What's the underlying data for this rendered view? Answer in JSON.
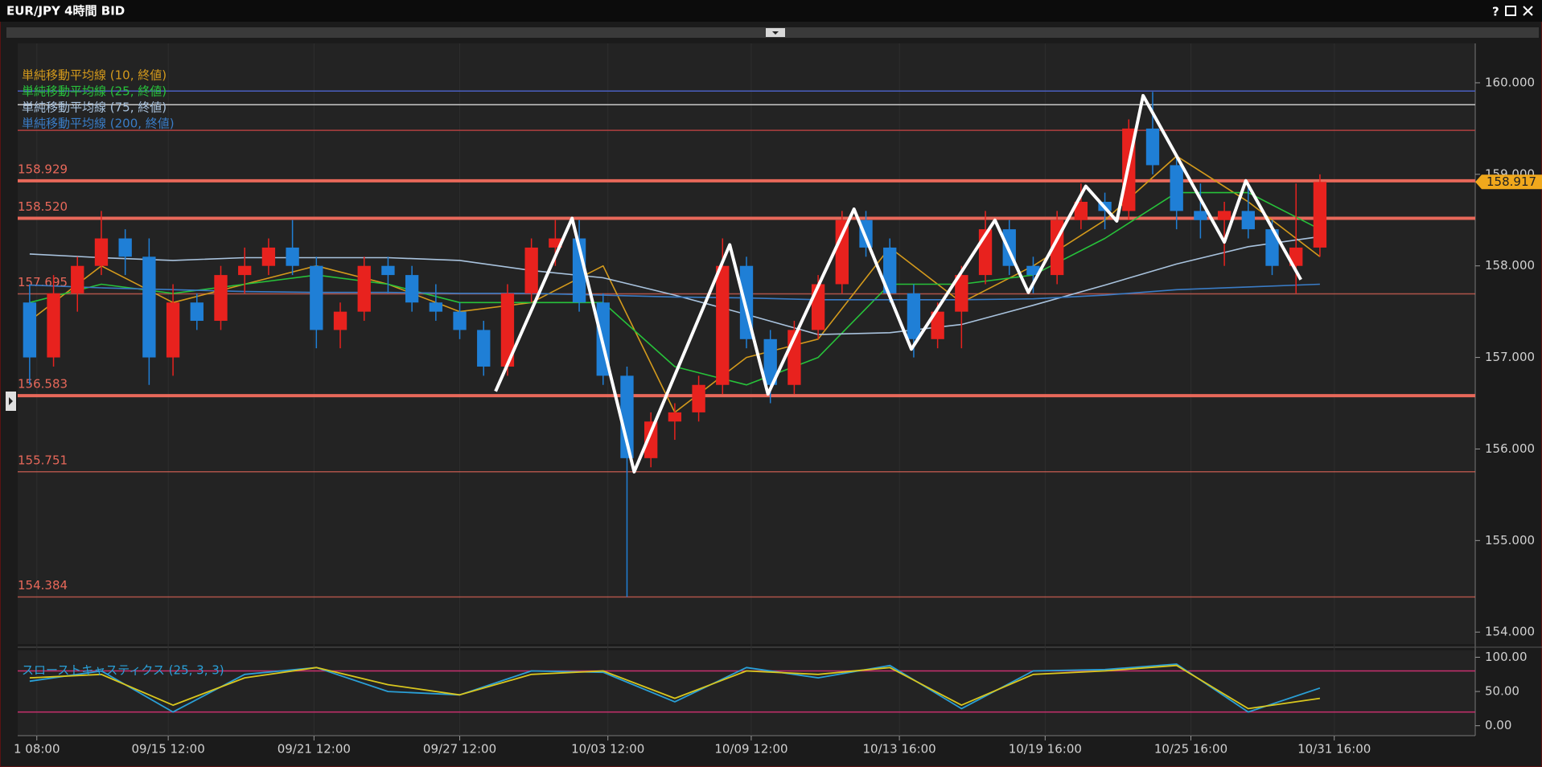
{
  "chart_data": [
    {
      "type": "candlestick",
      "title": "EUR/JPY 4時間 BID",
      "up_color": "#e8221e",
      "down_color": "#1f7fd6",
      "x": [
        0,
        1,
        2,
        3,
        4,
        5,
        6,
        7,
        8,
        9,
        10,
        11,
        12,
        13,
        14,
        15,
        16,
        17,
        18,
        19,
        20,
        21,
        22,
        23,
        24,
        25,
        26,
        27,
        28,
        29,
        30,
        31,
        32,
        33,
        34,
        35,
        36,
        37,
        38,
        39,
        40,
        41,
        42,
        43,
        44,
        45,
        46,
        47,
        48,
        49,
        50,
        51,
        52,
        53,
        54
      ],
      "open": [
        157.6,
        157.0,
        157.7,
        158.0,
        158.3,
        158.1,
        157.0,
        157.6,
        157.4,
        157.9,
        158.0,
        158.2,
        158.0,
        157.3,
        157.5,
        158.0,
        157.9,
        157.6,
        157.5,
        157.3,
        156.9,
        157.7,
        158.2,
        158.3,
        157.6,
        156.8,
        155.9,
        156.3,
        156.4,
        156.7,
        158.0,
        157.2,
        156.7,
        157.3,
        157.8,
        158.5,
        158.2,
        157.7,
        157.2,
        157.5,
        157.9,
        158.4,
        158.0,
        157.9,
        158.5,
        158.7,
        158.6,
        159.5,
        159.1,
        158.6,
        158.5,
        158.6,
        158.4,
        158.0,
        158.2
      ],
      "high": [
        157.8,
        157.9,
        158.1,
        158.6,
        158.4,
        158.3,
        157.8,
        157.7,
        158.0,
        158.2,
        158.3,
        158.5,
        158.1,
        157.6,
        158.1,
        158.1,
        158.0,
        157.8,
        157.6,
        157.4,
        157.8,
        158.3,
        158.5,
        158.5,
        157.7,
        156.9,
        156.4,
        156.5,
        156.8,
        158.3,
        158.1,
        157.3,
        157.4,
        157.9,
        158.6,
        158.6,
        158.3,
        157.8,
        157.6,
        158.0,
        158.6,
        158.5,
        158.1,
        158.6,
        158.9,
        158.8,
        159.6,
        159.9,
        159.2,
        158.9,
        158.7,
        158.9,
        158.5,
        158.9,
        159.0
      ],
      "low": [
        156.7,
        156.9,
        157.5,
        157.9,
        157.9,
        156.7,
        156.8,
        157.3,
        157.3,
        157.7,
        157.9,
        157.9,
        157.1,
        157.1,
        157.4,
        157.7,
        157.5,
        157.4,
        157.2,
        156.8,
        156.8,
        157.6,
        158.0,
        157.5,
        156.7,
        154.384,
        155.8,
        156.1,
        156.3,
        156.6,
        157.1,
        156.5,
        156.6,
        157.2,
        157.7,
        158.1,
        157.6,
        157.0,
        157.1,
        157.1,
        157.8,
        157.9,
        157.7,
        157.8,
        158.4,
        158.4,
        158.5,
        159.0,
        158.4,
        158.3,
        158.0,
        158.3,
        157.9,
        157.7,
        158.1
      ],
      "close": [
        157.0,
        157.7,
        158.0,
        158.3,
        158.1,
        157.0,
        157.6,
        157.4,
        157.9,
        158.0,
        158.2,
        158.0,
        157.3,
        157.5,
        158.0,
        157.9,
        157.6,
        157.5,
        157.3,
        156.9,
        157.7,
        158.2,
        158.3,
        157.6,
        156.8,
        155.9,
        156.3,
        156.4,
        156.7,
        158.0,
        157.2,
        156.7,
        157.3,
        157.8,
        158.5,
        158.2,
        157.7,
        157.2,
        157.5,
        157.9,
        158.4,
        158.0,
        157.9,
        158.5,
        158.7,
        158.6,
        159.5,
        159.1,
        158.6,
        158.5,
        158.6,
        158.4,
        158.0,
        158.2,
        158.917
      ],
      "xlim": [
        -0.5,
        60.5
      ],
      "xticks": [
        {
          "value": 0.3,
          "label": "1 08:00"
        },
        {
          "value": 5.8,
          "label": "09/15 12:00"
        },
        {
          "value": 11.9,
          "label": "09/21 12:00"
        },
        {
          "value": 18.0,
          "label": "09/27 12:00"
        },
        {
          "value": 24.2,
          "label": "10/03 12:00"
        },
        {
          "value": 30.2,
          "label": "10/09 12:00"
        },
        {
          "value": 36.4,
          "label": "10/13 16:00"
        },
        {
          "value": 42.5,
          "label": "10/19 16:00"
        },
        {
          "value": 48.6,
          "label": "10/25 16:00"
        },
        {
          "value": 54.6,
          "label": "10/31 16:00"
        }
      ],
      "ylim": [
        153.87,
        160.43
      ],
      "yticks": [
        {
          "value": 154,
          "label": "154.000"
        },
        {
          "value": 155,
          "label": "155.000"
        },
        {
          "value": 156,
          "label": "156.000"
        },
        {
          "value": 157,
          "label": "157.000"
        },
        {
          "value": 158,
          "label": "158.000"
        },
        {
          "value": 159,
          "label": "159.000"
        },
        {
          "value": 160,
          "label": "160.000"
        }
      ],
      "overlays": [
        {
          "name": "単純移動平均線 (10, 終値)",
          "color": "#d49a1c",
          "x": [
            0,
            3,
            6,
            9,
            12,
            15,
            18,
            21,
            24,
            27,
            30,
            33,
            36,
            39,
            42,
            45,
            48,
            51,
            54
          ],
          "values": [
            157.4,
            158.0,
            157.6,
            157.8,
            158.0,
            157.8,
            157.5,
            157.6,
            158.0,
            156.4,
            157.0,
            157.2,
            158.2,
            157.6,
            158.0,
            158.5,
            159.2,
            158.7,
            158.1
          ]
        },
        {
          "name": "単純移動平均線 (25, 終値)",
          "color": "#27c23a",
          "x": [
            0,
            3,
            6,
            9,
            12,
            15,
            18,
            21,
            24,
            27,
            30,
            33,
            36,
            39,
            42,
            45,
            48,
            51,
            54
          ],
          "values": [
            157.6,
            157.8,
            157.7,
            157.8,
            157.9,
            157.8,
            157.6,
            157.6,
            157.6,
            156.9,
            156.7,
            157.0,
            157.8,
            157.8,
            157.9,
            158.3,
            158.8,
            158.8,
            158.4
          ]
        },
        {
          "name": "単純移動平均線 (75, 終値)",
          "color": "#a9c3de",
          "x": [
            0,
            3,
            6,
            9,
            12,
            15,
            18,
            21,
            24,
            27,
            30,
            33,
            36,
            39,
            42,
            45,
            48,
            51,
            54
          ],
          "values": [
            158.13,
            158.09,
            158.06,
            158.09,
            158.09,
            158.09,
            158.06,
            157.95,
            157.87,
            157.68,
            157.47,
            157.25,
            157.27,
            157.36,
            157.57,
            157.79,
            158.02,
            158.21,
            158.32
          ]
        },
        {
          "name": "単純移動平均線 (200, 終値)",
          "color": "#3a7cc6",
          "x": [
            0,
            3,
            6,
            9,
            12,
            15,
            18,
            21,
            24,
            27,
            30,
            33,
            36,
            39,
            42,
            45,
            48,
            51,
            54
          ],
          "values": [
            157.79,
            157.76,
            157.74,
            157.72,
            157.71,
            157.71,
            157.7,
            157.7,
            157.68,
            157.66,
            157.65,
            157.63,
            157.63,
            157.63,
            157.64,
            157.68,
            157.74,
            157.77,
            157.8
          ]
        }
      ],
      "zigzag": {
        "color": "#ffffff",
        "x": [
          19.5,
          22.7,
          25.3,
          29.3,
          30.9,
          34.5,
          36.9,
          40.4,
          41.8,
          44.2,
          45.5,
          46.6,
          50.0,
          50.9,
          53.2
        ],
        "values": [
          156.63,
          158.52,
          155.75,
          158.23,
          156.6,
          158.62,
          157.09,
          158.5,
          157.71,
          158.87,
          158.49,
          159.86,
          158.26,
          158.93,
          157.85
        ]
      },
      "ref_lines": [
        {
          "value": 159.91,
          "color": "#4a5fc0"
        },
        {
          "value": 159.76,
          "color": "#c8c8c8"
        },
        {
          "value": 159.48,
          "color": "#b04040"
        }
      ],
      "levels": [
        {
          "value": 158.929,
          "label": "158.929",
          "major": true
        },
        {
          "value": 158.52,
          "label": "158.520",
          "major": true
        },
        {
          "value": 157.695,
          "label": "157.695",
          "major": false
        },
        {
          "value": 156.583,
          "label": "156.583",
          "major": true
        },
        {
          "value": 155.751,
          "label": "155.751",
          "major": false
        },
        {
          "value": 154.384,
          "label": "154.384",
          "major": false
        }
      ],
      "level_color": "#e8685a",
      "last_price": 158.917,
      "last_price_color": "#f0a81c"
    },
    {
      "type": "line",
      "title": "スローストキャスティクス (25, 3, 3)",
      "title_color": "#2aa0d8",
      "x": [
        0,
        3,
        6,
        9,
        12,
        15,
        18,
        21,
        24,
        27,
        30,
        33,
        36,
        39,
        42,
        45,
        48,
        51,
        54
      ],
      "xlim": [
        -0.5,
        60.5
      ],
      "series": [
        {
          "color": "#2a9fd6",
          "values": [
            65,
            80,
            20,
            75,
            85,
            50,
            45,
            80,
            78,
            35,
            85,
            70,
            88,
            25,
            80,
            82,
            90,
            20,
            55
          ]
        },
        {
          "color": "#d8c61e",
          "values": [
            70,
            75,
            30,
            70,
            85,
            60,
            45,
            75,
            80,
            40,
            80,
            75,
            85,
            30,
            75,
            80,
            88,
            25,
            40
          ]
        }
      ],
      "bands": [
        20,
        80
      ],
      "band_color": "#c8306e",
      "ylim": [
        -14.5,
        110
      ],
      "yticks": [
        {
          "value": 0,
          "label": "0.00"
        },
        {
          "value": 50,
          "label": "50.00"
        },
        {
          "value": 100,
          "label": "100.00"
        }
      ]
    }
  ],
  "window": {
    "help": "?"
  }
}
